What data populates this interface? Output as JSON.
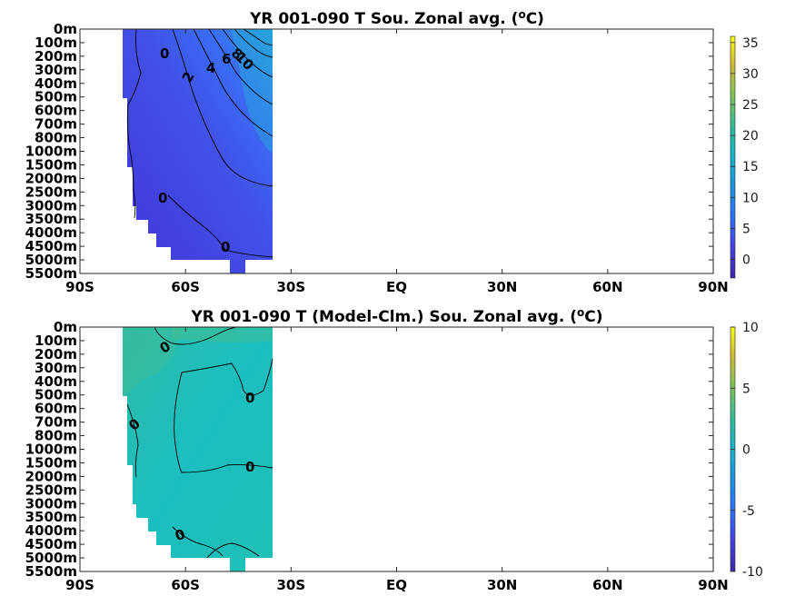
{
  "chart_data": [
    {
      "type": "heatmap",
      "title_main": "YR 001-090 T Sou. Zonal avg. (",
      "title_sup": "o",
      "title_tail": "C)",
      "x_tick_labels": [
        "90S",
        "60S",
        "30S",
        "EQ",
        "30N",
        "60N",
        "90N"
      ],
      "x_ticks": [
        -90,
        -60,
        -30,
        0,
        30,
        60,
        90
      ],
      "xlim": [
        -90,
        90
      ],
      "y_tick_labels": [
        "0m",
        "100m",
        "200m",
        "300m",
        "400m",
        "500m",
        "600m",
        "700m",
        "800m",
        "1000m",
        "1500m",
        "2000m",
        "2500m",
        "3000m",
        "3500m",
        "4000m",
        "4500m",
        "5000m",
        "5500m"
      ],
      "colorbar": {
        "ticks": [
          35,
          30,
          25,
          20,
          15,
          10,
          5,
          0
        ],
        "tick_labels": [
          "35",
          "30",
          "25",
          "20",
          "15",
          "10",
          "5",
          "0"
        ],
        "range": [
          -3,
          36
        ]
      },
      "data_extent_lat": [
        -78,
        -34
      ],
      "contour_labels": [
        "0",
        "2",
        "4",
        "6",
        "8",
        "10",
        "0",
        "0"
      ],
      "field_description_values": {
        "surface_north_max_temp": 14,
        "deep_temp": 0,
        "antarctic_surface_temp": -1.5
      }
    },
    {
      "type": "heatmap",
      "title_main": "YR 001-090 T (Model-Clm.) Sou. Zonal avg. (",
      "title_sup": "o",
      "title_tail": "C)",
      "x_tick_labels": [
        "90S",
        "60S",
        "30S",
        "EQ",
        "30N",
        "60N",
        "90N"
      ],
      "x_ticks": [
        -90,
        -60,
        -30,
        0,
        30,
        60,
        90
      ],
      "xlim": [
        -90,
        90
      ],
      "y_tick_labels": [
        "0m",
        "100m",
        "200m",
        "300m",
        "400m",
        "500m",
        "600m",
        "700m",
        "800m",
        "1000m",
        "1500m",
        "2000m",
        "2500m",
        "3000m",
        "3500m",
        "4000m",
        "4500m",
        "5000m",
        "5500m"
      ],
      "colorbar": {
        "ticks": [
          10,
          5,
          0,
          -5,
          -10
        ],
        "tick_labels": [
          "10",
          "5",
          "0",
          "-5",
          "-10"
        ],
        "range": [
          -10,
          10
        ]
      },
      "data_extent_lat": [
        -78,
        -34
      ],
      "contour_labels": [
        "0",
        "0",
        "0",
        "0",
        "0"
      ],
      "field_description_values": {
        "typical_anomaly": 0,
        "range_anomaly": [
          -1,
          1
        ]
      }
    }
  ],
  "colors": {
    "cold": "#3e26a8",
    "cool": "#2e6ffb",
    "mid": "#13b2c9",
    "warm": "#7bcc63",
    "hot": "#f9fb15"
  }
}
